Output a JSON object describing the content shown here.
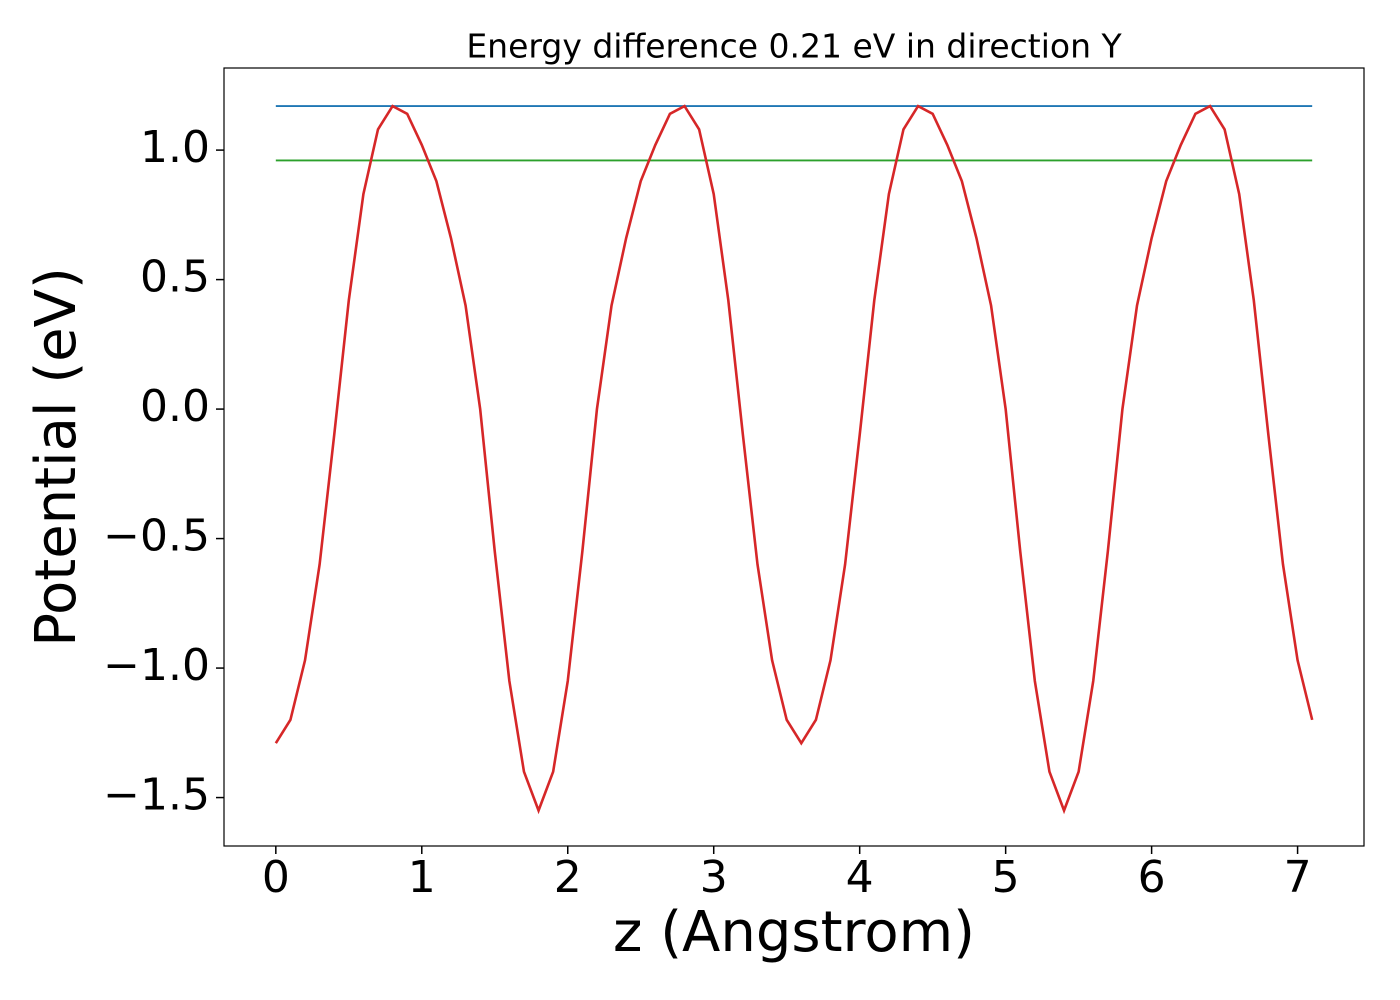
{
  "chart_data": {
    "type": "line",
    "title": "Energy difference 0.21 eV in direction Y",
    "x_label": "z (Angstrom)",
    "y_label": "Potential (eV)",
    "xlim": [
      -0.355,
      7.455
    ],
    "ylim": [
      -1.687,
      1.317
    ],
    "xticks": [
      0,
      1,
      2,
      3,
      4,
      5,
      6,
      7
    ],
    "yticks": [
      {
        "value": -1.5,
        "label": "−1.5"
      },
      {
        "value": -1.0,
        "label": "−1.0"
      },
      {
        "value": -0.5,
        "label": "−0.5"
      },
      {
        "value": 0.0,
        "label": "0.0"
      },
      0.5,
      {
        "value": 1.0,
        "label": "1.0"
      }
    ],
    "series": [
      {
        "color": "#1f77b4",
        "x": [
          0,
          7.1
        ],
        "values": [
          1.17,
          1.17
        ]
      },
      {
        "color": "#2ca02c",
        "x": [
          0,
          7.1
        ],
        "values": [
          0.96,
          0.96
        ]
      },
      {
        "color": "#d62728",
        "x": [
          0,
          0.1,
          0.2,
          0.3,
          0.4,
          0.5,
          0.6,
          0.7,
          0.8,
          0.9,
          1.0,
          1.1,
          1.2,
          1.3,
          1.4,
          1.5,
          1.6,
          1.7,
          1.8,
          1.9,
          2.0,
          2.1,
          2.2,
          2.3,
          2.4,
          2.5,
          2.6,
          2.7,
          2.8,
          2.9,
          3.0,
          3.1,
          3.2,
          3.3,
          3.4,
          3.5,
          3.6,
          3.7,
          3.8,
          3.9,
          4.0,
          4.1,
          4.2,
          4.3,
          4.4,
          4.5,
          4.6,
          4.7,
          4.8,
          4.9,
          5.0,
          5.1,
          5.2,
          5.3,
          5.4,
          5.5,
          5.6,
          5.7,
          5.8,
          5.9,
          6.0,
          6.1,
          6.2,
          6.3,
          6.4,
          6.5,
          6.6,
          6.7,
          6.8,
          6.9,
          7.0,
          7.1
        ],
        "values": [
          -1.29,
          -1.2,
          -0.97,
          -0.6,
          -0.1,
          0.42,
          0.83,
          1.08,
          1.17,
          1.14,
          1.02,
          0.88,
          0.66,
          0.4,
          0.0,
          -0.55,
          -1.05,
          -1.4,
          -1.55,
          -1.4,
          -1.05,
          -0.55,
          0.0,
          0.4,
          0.66,
          0.88,
          1.02,
          1.14,
          1.17,
          1.08,
          0.83,
          0.42,
          -0.1,
          -0.6,
          -0.97,
          -1.2,
          -1.29,
          -1.2,
          -0.97,
          -0.6,
          -0.1,
          0.42,
          0.83,
          1.08,
          1.17,
          1.14,
          1.02,
          0.88,
          0.66,
          0.4,
          0.0,
          -0.55,
          -1.05,
          -1.4,
          -1.55,
          -1.4,
          -1.05,
          -0.55,
          0.0,
          0.4,
          0.66,
          0.88,
          1.02,
          1.14,
          1.17,
          1.08,
          0.83,
          0.42,
          -0.1,
          -0.6,
          -0.97,
          -1.2
        ]
      }
    ]
  }
}
